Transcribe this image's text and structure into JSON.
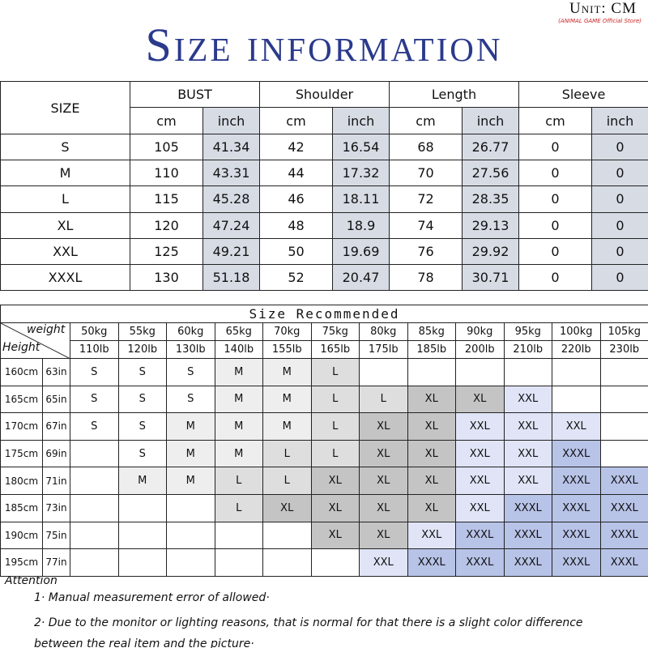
{
  "unit": {
    "label": "Unit: CM",
    "store": "(ANIMAL GAME Official Store)"
  },
  "title": "Size information",
  "size_table": {
    "header": [
      "SIZE",
      "BUST",
      "Shoulder",
      "Length",
      "Sleeve"
    ],
    "subheader": [
      "cm",
      "inch",
      "cm",
      "inch",
      "cm",
      "inch",
      "cm",
      "inch"
    ],
    "rows": [
      [
        "S",
        105,
        41.34,
        42,
        16.54,
        68,
        26.77,
        0,
        0
      ],
      [
        "M",
        110,
        43.31,
        44,
        17.32,
        70,
        27.56,
        0,
        0
      ],
      [
        "L",
        115,
        45.28,
        46,
        18.11,
        72,
        28.35,
        0,
        0
      ],
      [
        "XL",
        120,
        47.24,
        48,
        18.9,
        74,
        29.13,
        0,
        0
      ],
      [
        "XXL",
        125,
        49.21,
        50,
        19.69,
        76,
        29.92,
        0,
        0
      ],
      [
        "XXXL",
        130,
        51.18,
        52,
        20.47,
        78,
        30.71,
        0,
        0
      ]
    ]
  },
  "recommend_table": {
    "title": "Size Recommended",
    "weight_label": "weight",
    "height_label": "Height",
    "weights_kg": [
      "50kg",
      "55kg",
      "60kg",
      "65kg",
      "70kg",
      "75kg",
      "80kg",
      "85kg",
      "90kg",
      "95kg",
      "100kg",
      "105kg"
    ],
    "weights_lb": [
      "110lb",
      "120lb",
      "130lb",
      "140lb",
      "155lb",
      "165lb",
      "175lb",
      "185lb",
      "200lb",
      "210lb",
      "220lb",
      "230lb"
    ],
    "rows": [
      {
        "cm": "160cm",
        "in": "63in",
        "sizes": [
          "S",
          "S",
          "S",
          "M",
          "M",
          "L",
          null,
          null,
          null,
          null,
          null,
          null
        ]
      },
      {
        "cm": "165cm",
        "in": "65in",
        "sizes": [
          "S",
          "S",
          "S",
          "M",
          "M",
          "L",
          "L",
          "XL",
          "XL",
          "XXL",
          null,
          null
        ]
      },
      {
        "cm": "170cm",
        "in": "67in",
        "sizes": [
          "S",
          "S",
          "M",
          "M",
          "M",
          "L",
          "XL",
          "XL",
          "XXL",
          "XXL",
          "XXL",
          null
        ]
      },
      {
        "cm": "175cm",
        "in": "69in",
        "sizes": [
          null,
          "S",
          "M",
          "M",
          "L",
          "L",
          "XL",
          "XL",
          "XXL",
          "XXL",
          "XXXL",
          null
        ]
      },
      {
        "cm": "180cm",
        "in": "71in",
        "sizes": [
          null,
          "M",
          "M",
          "L",
          "L",
          "XL",
          "XL",
          "XL",
          "XXL",
          "XXL",
          "XXXL",
          "XXXL"
        ]
      },
      {
        "cm": "185cm",
        "in": "73in",
        "sizes": [
          null,
          null,
          null,
          "L",
          "XL",
          "XL",
          "XL",
          "XL",
          "XXL",
          "XXXL",
          "XXXL",
          "XXXL"
        ]
      },
      {
        "cm": "190cm",
        "in": "75in",
        "sizes": [
          null,
          null,
          null,
          null,
          null,
          "XL",
          "XL",
          "XXL",
          "XXXL",
          "XXXL",
          "XXXL",
          "XXXL"
        ]
      },
      {
        "cm": "195cm",
        "in": "77in",
        "sizes": [
          null,
          null,
          null,
          null,
          null,
          null,
          "XXL",
          "XXXL",
          "XXXL",
          "XXXL",
          "XXXL",
          "XXXL"
        ]
      }
    ]
  },
  "attention": {
    "heading": "Attention",
    "notes": [
      "1· Manual measurement error of allowed·",
      "2·  Due to the monitor or lighting reasons, that is normal for that there is a slight color difference between the real item and the picture·"
    ]
  }
}
